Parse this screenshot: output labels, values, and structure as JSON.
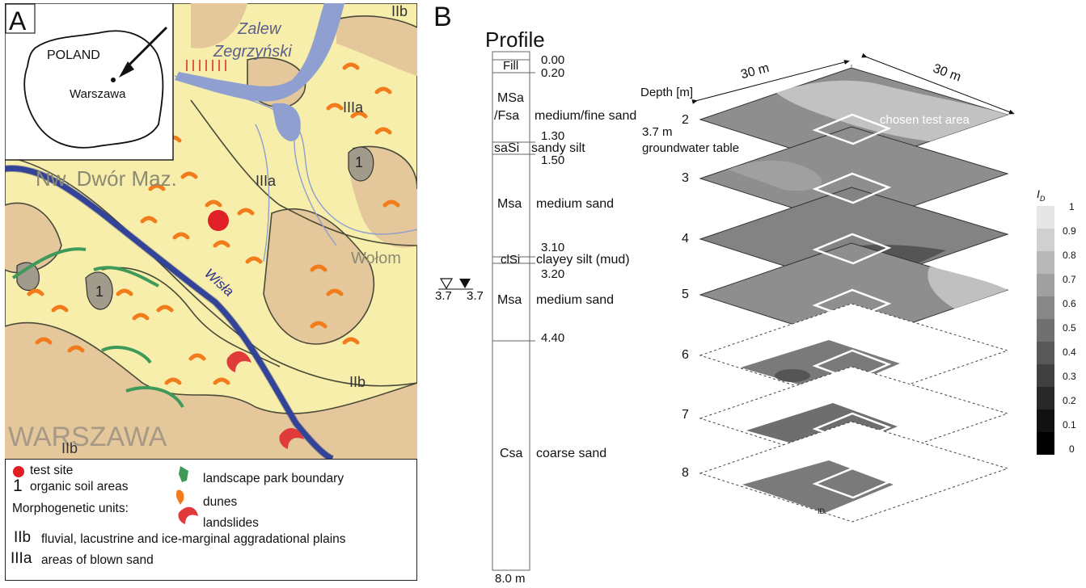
{
  "panel_a": {
    "letter": "A",
    "inset": {
      "country": "POLAND",
      "city": "Warszawa"
    },
    "map_labels": {
      "zalew": "Zalew",
      "zegrzynski": "Zegrzyński",
      "nw_dwor": "Nw. Dwór Maz.",
      "wisla": "Wisła",
      "warszawa": "WARSZAWA",
      "illa_1": "IIIa",
      "illa_2": "IIIa",
      "iib_1": "IIb",
      "iib_2": "IIb",
      "iib_3": "IIb",
      "organic_1": "1",
      "organic_2": "1",
      "wolomin": "Wołom"
    },
    "legend": {
      "test_site": "test site",
      "organic_symbol": "1",
      "organic": "organic soil areas",
      "park": "landscape park boundary",
      "dunes": "dunes",
      "landslides": "landslides",
      "morph_title": "Morphogenetic units:",
      "iib_symbol": "IIb",
      "iib_text": "fluvial, lacustrine and ice-marginal aggradational plains",
      "iiia_symbol": "IIIa",
      "iiia_text": "areas of blown sand"
    },
    "colors": {
      "land": "#f6eeaa",
      "sand": "#e4c79a",
      "water": "#8f9fcf",
      "test_site": "#e01f26",
      "dunes": "#f27c1b",
      "park": "#3f9a5a",
      "landslide": "#e03a3a"
    }
  },
  "panel_b": {
    "letter": "B",
    "profile_title": "Profile",
    "profile_layers": [
      {
        "code": "Fill",
        "desc": ""
      },
      {
        "code": "MSa",
        "code2": "/Fsa",
        "desc": "medium/fine sand"
      },
      {
        "code": "saSi",
        "desc": "sandy silt"
      },
      {
        "code": "Msa",
        "desc": "medium sand"
      },
      {
        "code": "clSi",
        "desc": "clayey silt (mud)"
      },
      {
        "code": "Msa",
        "desc": "medium sand"
      },
      {
        "code": "Csa",
        "desc": "coarse sand"
      }
    ],
    "profile_depths": [
      "0.00",
      "0.20",
      "1.30",
      "1.50",
      "3.10",
      "3.20",
      "4.40",
      "8.0 m"
    ],
    "groundwater_values": [
      "3.7",
      "3.7"
    ],
    "groundwater_note": "3.7 m",
    "groundwater_text": "groundwater table",
    "depth_axis_label": "Depth [m]",
    "dim_left": "30 m",
    "dim_right": "30 m",
    "test_area_label": "chosen test area",
    "slice_depths": [
      "2",
      "3",
      "4",
      "5",
      "6",
      "7",
      "8"
    ],
    "colorbar_title": "I",
    "colorbar_sub": "D",
    "colorbar_ticks": [
      "1",
      "0.9",
      "0.8",
      "0.7",
      "0.6",
      "0.5",
      "0.4",
      "0.3",
      "0.2",
      "0.1",
      "0"
    ],
    "id_mark": "ID"
  }
}
